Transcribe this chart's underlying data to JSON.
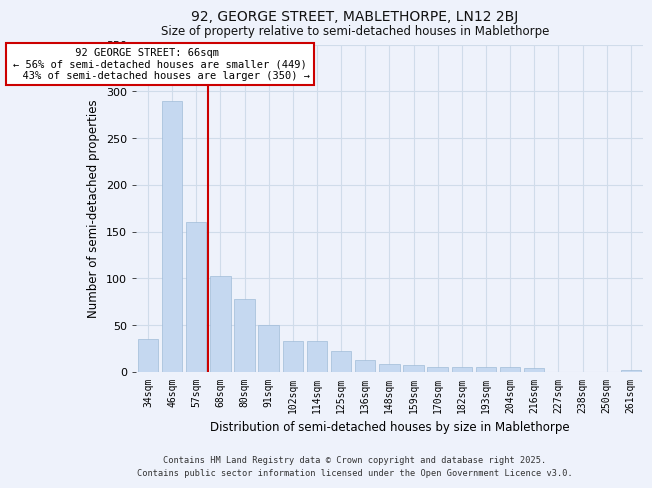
{
  "title": "92, GEORGE STREET, MABLETHORPE, LN12 2BJ",
  "subtitle": "Size of property relative to semi-detached houses in Mablethorpe",
  "xlabel": "Distribution of semi-detached houses by size in Mablethorpe",
  "ylabel": "Number of semi-detached properties",
  "bar_color": "#c5d8f0",
  "bar_edge_color": "#a0bcd8",
  "categories": [
    "34sqm",
    "46sqm",
    "57sqm",
    "68sqm",
    "80sqm",
    "91sqm",
    "102sqm",
    "114sqm",
    "125sqm",
    "136sqm",
    "148sqm",
    "159sqm",
    "170sqm",
    "182sqm",
    "193sqm",
    "204sqm",
    "216sqm",
    "227sqm",
    "238sqm",
    "250sqm",
    "261sqm"
  ],
  "values": [
    35,
    290,
    160,
    103,
    78,
    50,
    33,
    33,
    22,
    13,
    9,
    7,
    5,
    5,
    5,
    5,
    4,
    0,
    0,
    0,
    2
  ],
  "ylim": [
    0,
    350
  ],
  "yticks": [
    0,
    50,
    100,
    150,
    200,
    250,
    300,
    350
  ],
  "vline_x": 2.5,
  "property_label": "92 GEORGE STREET: 66sqm",
  "pct_smaller": "56% of semi-detached houses are smaller (449)",
  "pct_larger": "43% of semi-detached houses are larger (350)",
  "annotation_box_color": "#ffffff",
  "annotation_box_edge": "#cc0000",
  "vline_color": "#cc0000",
  "grid_color": "#d0dcea",
  "bg_color": "#eef2fb",
  "footer1": "Contains HM Land Registry data © Crown copyright and database right 2025.",
  "footer2": "Contains public sector information licensed under the Open Government Licence v3.0."
}
